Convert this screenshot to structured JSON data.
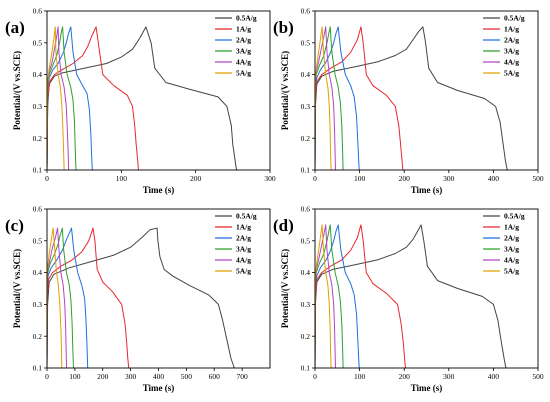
{
  "figure": {
    "y_axis_title": "Potential/(V vs.SCE)",
    "x_axis_title": "Time (s)"
  },
  "chart_data": [
    {
      "type": "line",
      "panel_label": "(a)",
      "xlabel": "Time (s)",
      "ylabel": "Potential/(V vs.SCE)",
      "xlim": [
        0,
        300
      ],
      "ylim": [
        0.1,
        0.6
      ],
      "xticks": [
        0,
        100,
        200,
        300
      ],
      "yticks": [
        0.1,
        0.2,
        0.3,
        0.4,
        0.5,
        0.6
      ],
      "legend_position": "top-right",
      "series": [
        {
          "name": "0.5A/g",
          "color": "#444444",
          "x": [
            0,
            1,
            3,
            10,
            20,
            50,
            80,
            100,
            115,
            125,
            133,
            140,
            145,
            160,
            190,
            230,
            242,
            248,
            250,
            253,
            255,
            256
          ],
          "y": [
            0.1,
            0.3,
            0.37,
            0.395,
            0.405,
            0.42,
            0.435,
            0.455,
            0.48,
            0.515,
            0.55,
            0.5,
            0.42,
            0.375,
            0.355,
            0.33,
            0.3,
            0.24,
            0.18,
            0.13,
            0.1,
            0.1
          ]
        },
        {
          "name": "1A/g",
          "color": "#e8262b",
          "x": [
            0,
            1,
            4,
            10,
            20,
            35,
            48,
            55,
            60,
            66,
            69,
            75,
            90,
            108,
            115,
            118,
            120,
            122,
            123
          ],
          "y": [
            0.1,
            0.33,
            0.38,
            0.4,
            0.415,
            0.435,
            0.46,
            0.49,
            0.52,
            0.55,
            0.5,
            0.4,
            0.365,
            0.335,
            0.3,
            0.24,
            0.18,
            0.13,
            0.1
          ]
        },
        {
          "name": "2A/g",
          "color": "#1f6fe0",
          "x": [
            0,
            1,
            3,
            8,
            15,
            22,
            26,
            29,
            32,
            35,
            40,
            48,
            54,
            57,
            59,
            60,
            61
          ],
          "y": [
            0.1,
            0.35,
            0.39,
            0.415,
            0.435,
            0.47,
            0.5,
            0.53,
            0.55,
            0.47,
            0.4,
            0.365,
            0.34,
            0.29,
            0.21,
            0.15,
            0.1
          ]
        },
        {
          "name": "3A/g",
          "color": "#2ca02c",
          "x": [
            0,
            1,
            3,
            8,
            13,
            17,
            19,
            21,
            23,
            27,
            32,
            35,
            37,
            38,
            39
          ],
          "y": [
            0.1,
            0.36,
            0.4,
            0.43,
            0.46,
            0.5,
            0.53,
            0.55,
            0.47,
            0.4,
            0.36,
            0.32,
            0.25,
            0.17,
            0.1
          ]
        },
        {
          "name": "4A/g",
          "color": "#b044c8",
          "x": [
            0,
            1,
            3,
            7,
            10,
            13,
            15,
            16,
            19,
            23,
            26,
            27.5,
            28.5,
            29
          ],
          "y": [
            0.1,
            0.37,
            0.41,
            0.44,
            0.48,
            0.52,
            0.55,
            0.47,
            0.4,
            0.36,
            0.3,
            0.22,
            0.15,
            0.1
          ]
        },
        {
          "name": "5A/g",
          "color": "#e0a000",
          "x": [
            0,
            1,
            3,
            6,
            9,
            11,
            12,
            15,
            18,
            20,
            21.5,
            22.5,
            23
          ],
          "y": [
            0.1,
            0.38,
            0.42,
            0.46,
            0.51,
            0.55,
            0.47,
            0.4,
            0.36,
            0.3,
            0.22,
            0.15,
            0.1
          ]
        }
      ]
    },
    {
      "type": "line",
      "panel_label": "(b)",
      "xlabel": "Time (s)",
      "ylabel": "Potential/(V vs.SCE)",
      "xlim": [
        0,
        500
      ],
      "ylim": [
        0.1,
        0.6
      ],
      "xticks": [
        0,
        100,
        200,
        300,
        400,
        500
      ],
      "yticks": [
        0.1,
        0.2,
        0.3,
        0.4,
        0.5,
        0.6
      ],
      "legend_position": "top-right",
      "series": [
        {
          "name": "0.5A/g",
          "color": "#444444",
          "x": [
            0,
            1,
            4,
            15,
            40,
            90,
            140,
            180,
            205,
            220,
            232,
            242,
            248,
            255,
            275,
            320,
            380,
            405,
            415,
            422,
            427,
            431,
            433
          ],
          "y": [
            0.1,
            0.3,
            0.37,
            0.395,
            0.41,
            0.425,
            0.44,
            0.46,
            0.48,
            0.51,
            0.535,
            0.55,
            0.5,
            0.42,
            0.375,
            0.35,
            0.325,
            0.3,
            0.25,
            0.18,
            0.13,
            0.1,
            0.1
          ]
        },
        {
          "name": "1A/g",
          "color": "#e8262b",
          "x": [
            0,
            1,
            5,
            15,
            35,
            60,
            80,
            95,
            103,
            108,
            115,
            130,
            160,
            180,
            188,
            192,
            195,
            197,
            198
          ],
          "y": [
            0.1,
            0.33,
            0.38,
            0.4,
            0.42,
            0.44,
            0.47,
            0.51,
            0.55,
            0.5,
            0.4,
            0.365,
            0.335,
            0.3,
            0.24,
            0.18,
            0.13,
            0.1,
            0.1
          ]
        },
        {
          "name": "2A/g",
          "color": "#1f6fe0",
          "x": [
            0,
            1,
            4,
            12,
            25,
            35,
            42,
            47,
            52,
            58,
            68,
            80,
            88,
            93,
            96,
            98,
            99
          ],
          "y": [
            0.1,
            0.35,
            0.39,
            0.415,
            0.44,
            0.47,
            0.5,
            0.53,
            0.55,
            0.47,
            0.4,
            0.365,
            0.33,
            0.27,
            0.19,
            0.13,
            0.1
          ]
        },
        {
          "name": "3A/g",
          "color": "#2ca02c",
          "x": [
            0,
            1,
            3,
            10,
            20,
            27,
            31,
            34,
            38,
            45,
            52,
            57,
            60,
            62,
            63
          ],
          "y": [
            0.1,
            0.36,
            0.4,
            0.43,
            0.46,
            0.5,
            0.53,
            0.55,
            0.47,
            0.4,
            0.36,
            0.31,
            0.24,
            0.15,
            0.1
          ]
        },
        {
          "name": "4A/g",
          "color": "#b044c8",
          "x": [
            0,
            1,
            3,
            8,
            14,
            20,
            24,
            27,
            32,
            38,
            42,
            44,
            45,
            46
          ],
          "y": [
            0.1,
            0.37,
            0.41,
            0.44,
            0.48,
            0.52,
            0.55,
            0.47,
            0.4,
            0.36,
            0.3,
            0.22,
            0.15,
            0.1
          ]
        },
        {
          "name": "5A/g",
          "color": "#e0a000",
          "x": [
            0,
            1,
            3,
            7,
            12,
            16,
            19,
            24,
            29,
            32,
            34,
            35,
            36
          ],
          "y": [
            0.1,
            0.38,
            0.42,
            0.46,
            0.51,
            0.55,
            0.47,
            0.4,
            0.36,
            0.3,
            0.22,
            0.15,
            0.1
          ]
        }
      ]
    },
    {
      "type": "line",
      "panel_label": "(c)",
      "xlabel": "Time (s)",
      "ylabel": "Potential/(V vs.SCE)",
      "xlim": [
        0,
        800
      ],
      "ylim": [
        0.1,
        0.6
      ],
      "xticks": [
        0,
        100,
        200,
        300,
        400,
        500,
        600,
        700
      ],
      "yticks": [
        0.1,
        0.2,
        0.3,
        0.4,
        0.5,
        0.6
      ],
      "legend_position": "top-right",
      "series": [
        {
          "name": "0.5A/g",
          "color": "#444444",
          "x": [
            0,
            2,
            8,
            25,
            80,
            160,
            240,
            300,
            340,
            370,
            395,
            398,
            405,
            420,
            450,
            510,
            580,
            615,
            630,
            645,
            660,
            672,
            676
          ],
          "y": [
            0.1,
            0.3,
            0.37,
            0.395,
            0.415,
            0.435,
            0.455,
            0.48,
            0.51,
            0.535,
            0.54,
            0.5,
            0.45,
            0.41,
            0.39,
            0.36,
            0.33,
            0.3,
            0.25,
            0.19,
            0.13,
            0.1,
            0.1
          ]
        },
        {
          "name": "1A/g",
          "color": "#e8262b",
          "x": [
            0,
            1,
            6,
            20,
            50,
            90,
            125,
            150,
            165,
            172,
            180,
            200,
            235,
            268,
            280,
            286,
            290,
            293,
            295
          ],
          "y": [
            0.1,
            0.33,
            0.38,
            0.4,
            0.42,
            0.44,
            0.465,
            0.5,
            0.54,
            0.5,
            0.41,
            0.37,
            0.34,
            0.3,
            0.24,
            0.18,
            0.13,
            0.1,
            0.1
          ]
        },
        {
          "name": "2A/g",
          "color": "#1f6fe0",
          "x": [
            0,
            1,
            4,
            15,
            35,
            55,
            68,
            78,
            88,
            96,
            110,
            125,
            135,
            140,
            143,
            145,
            146
          ],
          "y": [
            0.1,
            0.35,
            0.39,
            0.415,
            0.44,
            0.47,
            0.5,
            0.52,
            0.54,
            0.47,
            0.4,
            0.36,
            0.32,
            0.25,
            0.18,
            0.13,
            0.1
          ]
        },
        {
          "name": "3A/g",
          "color": "#2ca02c",
          "x": [
            0,
            1,
            3,
            12,
            28,
            40,
            48,
            55,
            60,
            70,
            80,
            86,
            90,
            93,
            95
          ],
          "y": [
            0.1,
            0.36,
            0.4,
            0.43,
            0.46,
            0.49,
            0.52,
            0.54,
            0.47,
            0.4,
            0.36,
            0.31,
            0.24,
            0.15,
            0.1
          ]
        },
        {
          "name": "4A/g",
          "color": "#b044c8",
          "x": [
            0,
            1,
            3,
            10,
            20,
            30,
            38,
            43,
            50,
            58,
            64,
            67,
            69,
            70
          ],
          "y": [
            0.1,
            0.37,
            0.41,
            0.44,
            0.48,
            0.51,
            0.54,
            0.47,
            0.4,
            0.36,
            0.3,
            0.22,
            0.15,
            0.1
          ]
        },
        {
          "name": "5A/g",
          "color": "#e0a000",
          "x": [
            0,
            1,
            3,
            8,
            15,
            22,
            28,
            34,
            41,
            46,
            50,
            52,
            53
          ],
          "y": [
            0.1,
            0.38,
            0.42,
            0.46,
            0.5,
            0.54,
            0.47,
            0.4,
            0.36,
            0.3,
            0.22,
            0.15,
            0.1
          ]
        }
      ]
    },
    {
      "type": "line",
      "panel_label": "(d)",
      "xlabel": "Time (s)",
      "ylabel": "Potential/(V vs.SCE)",
      "xlim": [
        0,
        500
      ],
      "ylim": [
        0.1,
        0.6
      ],
      "xticks": [
        0,
        100,
        200,
        300,
        400,
        500
      ],
      "yticks": [
        0.1,
        0.2,
        0.3,
        0.4,
        0.5,
        0.6
      ],
      "legend_position": "top-right",
      "series": [
        {
          "name": "0.5A/g",
          "color": "#444444",
          "x": [
            0,
            1,
            4,
            15,
            40,
            90,
            140,
            180,
            205,
            220,
            230,
            238,
            244,
            252,
            275,
            320,
            375,
            400,
            410,
            418,
            424,
            428,
            430
          ],
          "y": [
            0.1,
            0.3,
            0.37,
            0.395,
            0.41,
            0.425,
            0.44,
            0.46,
            0.48,
            0.505,
            0.53,
            0.55,
            0.5,
            0.42,
            0.375,
            0.35,
            0.325,
            0.3,
            0.25,
            0.18,
            0.13,
            0.1,
            0.1
          ]
        },
        {
          "name": "1A/g",
          "color": "#e8262b",
          "x": [
            0,
            1,
            5,
            15,
            35,
            60,
            80,
            95,
            103,
            108,
            115,
            130,
            160,
            185,
            193,
            198,
            201,
            203,
            204
          ],
          "y": [
            0.1,
            0.33,
            0.38,
            0.4,
            0.42,
            0.44,
            0.47,
            0.51,
            0.55,
            0.5,
            0.4,
            0.365,
            0.335,
            0.3,
            0.24,
            0.18,
            0.13,
            0.1,
            0.1
          ]
        },
        {
          "name": "2A/g",
          "color": "#1f6fe0",
          "x": [
            0,
            1,
            4,
            12,
            25,
            35,
            42,
            47,
            52,
            58,
            68,
            80,
            88,
            93,
            96,
            98,
            99
          ],
          "y": [
            0.1,
            0.35,
            0.39,
            0.415,
            0.44,
            0.47,
            0.5,
            0.53,
            0.55,
            0.47,
            0.4,
            0.365,
            0.33,
            0.27,
            0.19,
            0.13,
            0.1
          ]
        },
        {
          "name": "3A/g",
          "color": "#2ca02c",
          "x": [
            0,
            1,
            3,
            10,
            20,
            27,
            31,
            34,
            38,
            45,
            52,
            57,
            60,
            62,
            63
          ],
          "y": [
            0.1,
            0.36,
            0.4,
            0.43,
            0.46,
            0.5,
            0.53,
            0.55,
            0.47,
            0.4,
            0.36,
            0.31,
            0.24,
            0.15,
            0.1
          ]
        },
        {
          "name": "4A/g",
          "color": "#b044c8",
          "x": [
            0,
            1,
            3,
            8,
            14,
            20,
            24,
            27,
            32,
            38,
            42,
            44,
            45,
            46
          ],
          "y": [
            0.1,
            0.37,
            0.41,
            0.44,
            0.48,
            0.52,
            0.55,
            0.47,
            0.4,
            0.36,
            0.3,
            0.22,
            0.15,
            0.1
          ]
        },
        {
          "name": "5A/g",
          "color": "#e0a000",
          "x": [
            0,
            1,
            3,
            7,
            12,
            16,
            19,
            24,
            29,
            32,
            34,
            35,
            36
          ],
          "y": [
            0.1,
            0.38,
            0.42,
            0.46,
            0.51,
            0.55,
            0.47,
            0.4,
            0.36,
            0.3,
            0.22,
            0.15,
            0.1
          ]
        }
      ]
    }
  ]
}
